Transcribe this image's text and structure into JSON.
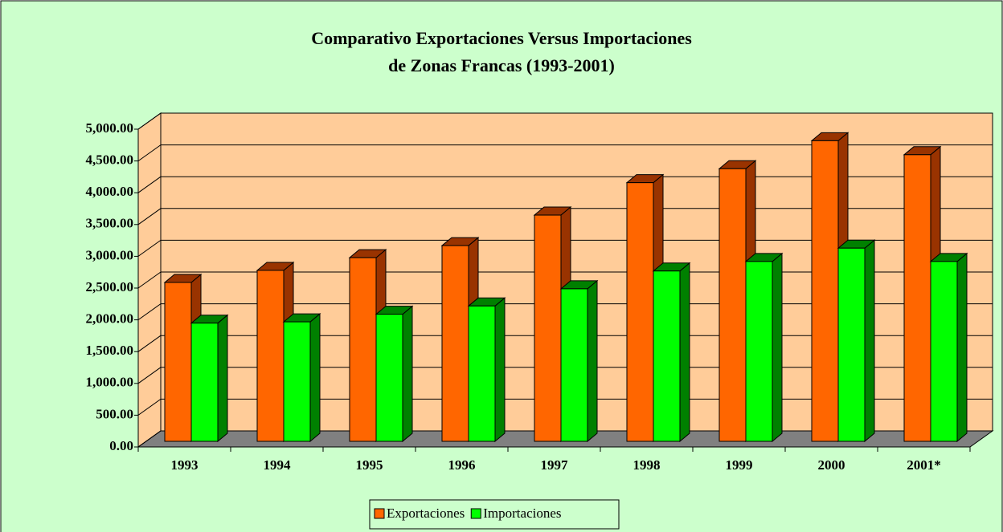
{
  "chart_data": {
    "type": "bar3d",
    "title": [
      "Comparativo Exportaciones Versus Importaciones",
      "de Zonas Francas (1993-2001)"
    ],
    "categories": [
      "1993",
      "1994",
      "1995",
      "1996",
      "1997",
      "1998",
      "1999",
      "2000",
      "2001*"
    ],
    "series": [
      {
        "name": "Exportaciones",
        "color": "#ff6600",
        "side_color": "#993300",
        "values": [
          2500,
          2690,
          2890,
          3080,
          3560,
          4070,
          4290,
          4730,
          4510
        ]
      },
      {
        "name": "Importaciones",
        "color": "#00ff00",
        "side_color": "#008000",
        "values": [
          1860,
          1880,
          2000,
          2130,
          2400,
          2680,
          2830,
          3040,
          2830
        ]
      }
    ],
    "ylim": [
      0,
      5000
    ],
    "yticks": [
      {
        "value": 0,
        "label": "0.00"
      },
      {
        "value": 500,
        "label": "500.00"
      },
      {
        "value": 1000,
        "label": "1,000.00"
      },
      {
        "value": 1500,
        "label": "1,500.00"
      },
      {
        "value": 2000,
        "label": "2,000.00"
      },
      {
        "value": 2500,
        "label": "2,500.00"
      },
      {
        "value": 3000,
        "label": "3,000.00"
      },
      {
        "value": 3500,
        "label": "3,500.00"
      },
      {
        "value": 4000,
        "label": "4,000.00"
      },
      {
        "value": 4500,
        "label": "4,500.00"
      },
      {
        "value": 5000,
        "label": "5,000.00"
      }
    ],
    "grid": true,
    "legend": "bottom"
  }
}
